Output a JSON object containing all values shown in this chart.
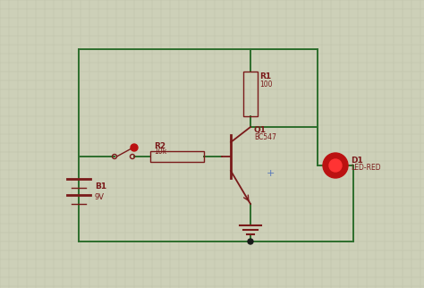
{
  "bg_color": "#cdd0b8",
  "grid_color": "#bfc2aa",
  "wire_color": "#2d6e2d",
  "component_color": "#7a1a1a",
  "dark_dot_color": "#1a1a1a",
  "led_color": "#bb1111",
  "led_inner_color": "#ff3333",
  "blue_plus": "#5577bb",
  "B1_label": "B1",
  "B1_val": "9V",
  "R1_label": "R1",
  "R1_val": "100",
  "R2_label": "R2",
  "R2_val": "10k",
  "Q1_label": "Q1",
  "Q1_val": "BC547",
  "D1_label": "D1",
  "D1_val": "LED-RED",
  "figw": 4.74,
  "figh": 3.22,
  "dpi": 100
}
